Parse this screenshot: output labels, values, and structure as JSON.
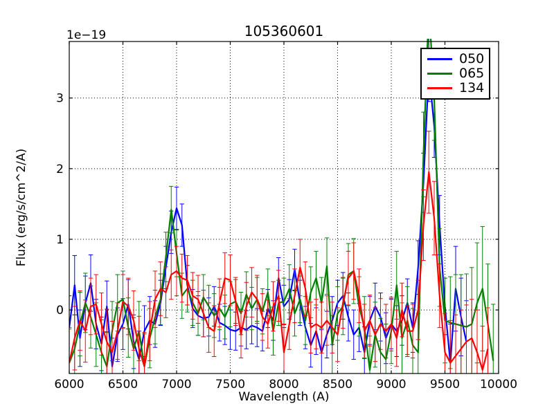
{
  "figure": {
    "title": "105360601",
    "offset_text": "1e−19",
    "xlabel": "Wavelength (A)",
    "ylabel": "Flux (erg/s/cm^2/A)",
    "background_color": "#ffffff",
    "frame_color": "#000000"
  },
  "legend": {
    "entries": [
      {
        "label": "050",
        "color": "#0000ff"
      },
      {
        "label": "065",
        "color": "#008000"
      },
      {
        "label": "134",
        "color": "#ff0000"
      }
    ]
  },
  "chart_data": {
    "type": "line",
    "title": "105360601",
    "xlabel": "Wavelength (A)",
    "ylabel": "Flux (erg/s/cm^2/A)",
    "y_unit_multiplier": "1e−19",
    "xlim": [
      6000,
      10000
    ],
    "ylim": [
      -0.9,
      3.8
    ],
    "xticks": [
      6000,
      6500,
      7000,
      7500,
      8000,
      8500,
      9000,
      9500,
      10000
    ],
    "yticks": [
      0,
      1,
      2,
      3
    ],
    "grid": true,
    "grid_style": "dotted",
    "legend_position": "upper right",
    "error_bars": true,
    "series": [
      {
        "name": "050",
        "color": "#0000ff",
        "x_start": 6000,
        "x_step": 50,
        "y": [
          -0.25,
          0.35,
          -0.4,
          0.1,
          0.38,
          -0.2,
          -0.48,
          0.05,
          -0.8,
          -0.35,
          -0.2,
          0.08,
          -0.45,
          -0.7,
          -0.3,
          -0.15,
          -0.2,
          0.1,
          0.6,
          1.1,
          1.44,
          1.2,
          0.35,
          0.02,
          -0.08,
          -0.12,
          -0.1,
          0.05,
          -0.18,
          -0.22,
          -0.28,
          -0.3,
          -0.25,
          -0.28,
          -0.22,
          -0.25,
          -0.3,
          0.02,
          -0.15,
          0.45,
          0.05,
          0.15,
          0.57,
          0.1,
          -0.25,
          -0.5,
          -0.3,
          -0.6,
          -0.35,
          -0.15,
          0.1,
          0.2,
          -0.1,
          -0.35,
          -0.25,
          -0.6,
          -0.15,
          0.05,
          -0.1,
          -0.4,
          -0.2,
          -0.3,
          -0.15,
          0.1,
          -0.25,
          0.6,
          1.8,
          3.4,
          2.6,
          1.2,
          0.05,
          -0.75,
          0.3,
          -0.1,
          -0.45
        ],
        "yerr": [
          0.45,
          0.42,
          0.4,
          0.38,
          0.4,
          0.35,
          0.38,
          0.36,
          0.4,
          0.38,
          0.36,
          0.35,
          0.38,
          0.4,
          0.36,
          0.34,
          0.33,
          0.32,
          0.3,
          0.3,
          0.3,
          0.3,
          0.28,
          0.27,
          0.28,
          0.26,
          0.27,
          0.28,
          0.26,
          0.27,
          0.28,
          0.27,
          0.26,
          0.27,
          0.26,
          0.27,
          0.28,
          0.27,
          0.28,
          0.29,
          0.3,
          0.28,
          0.29,
          0.32,
          0.3,
          0.31,
          0.33,
          0.32,
          0.33,
          0.34,
          0.32,
          0.33,
          0.34,
          0.35,
          0.34,
          0.36,
          0.34,
          0.33,
          0.34,
          0.36,
          0.35,
          0.36,
          0.35,
          0.34,
          0.35,
          0.38,
          0.42,
          0.45,
          0.44,
          0.42,
          0.4,
          0.55,
          0.6,
          0.55,
          0.58
        ]
      },
      {
        "name": "065",
        "color": "#008000",
        "x_start": 6000,
        "x_step": 50,
        "y": [
          -0.75,
          -0.55,
          -0.2,
          0.1,
          -0.1,
          -0.35,
          -0.6,
          -0.8,
          -0.3,
          0.1,
          0.15,
          -0.25,
          -0.55,
          -0.3,
          -0.8,
          -0.4,
          -0.1,
          0.15,
          0.75,
          1.42,
          0.8,
          0.2,
          0.3,
          0.1,
          -0.05,
          0.18,
          0.05,
          -0.08,
          0.02,
          -0.1,
          0.08,
          0.12,
          -0.05,
          0.22,
          0.02,
          0.15,
          -0.02,
          0.25,
          -0.3,
          0.1,
          0.12,
          0.3,
          -0.05,
          0.15,
          -0.15,
          0.25,
          0.45,
          0.1,
          0.62,
          -0.5,
          -0.05,
          0.05,
          0.5,
          0.55,
          0.05,
          -0.25,
          -0.85,
          -0.35,
          -0.6,
          -0.7,
          -0.3,
          0.35,
          -0.4,
          -0.15,
          -0.5,
          -0.6,
          2.2,
          4.3,
          3.0,
          0.6,
          -0.15,
          -0.18,
          -0.2,
          -0.22,
          -0.24,
          -0.2,
          0.1,
          0.3,
          -0.2,
          -0.72
        ],
        "yerr": [
          0.5,
          0.48,
          0.45,
          0.42,
          0.44,
          0.45,
          0.46,
          0.48,
          0.42,
          0.4,
          0.4,
          0.42,
          0.44,
          0.42,
          0.46,
          0.42,
          0.38,
          0.36,
          0.35,
          0.33,
          0.33,
          0.32,
          0.33,
          0.32,
          0.31,
          0.32,
          0.3,
          0.31,
          0.3,
          0.31,
          0.32,
          0.31,
          0.3,
          0.32,
          0.3,
          0.31,
          0.32,
          0.33,
          0.34,
          0.32,
          0.33,
          0.34,
          0.32,
          0.33,
          0.34,
          0.36,
          0.38,
          0.36,
          0.4,
          0.42,
          0.38,
          0.4,
          0.44,
          0.46,
          0.42,
          0.44,
          0.48,
          0.46,
          0.48,
          0.5,
          0.46,
          0.48,
          0.5,
          0.48,
          0.52,
          0.55,
          0.6,
          0.65,
          0.6,
          0.55,
          0.6,
          0.65,
          0.7,
          0.72,
          0.75,
          0.8,
          0.85,
          0.88,
          0.85,
          0.8
        ]
      },
      {
        "name": "134",
        "color": "#ff0000",
        "x_start": 6000,
        "x_step": 50,
        "y": [
          -0.75,
          -0.4,
          -0.15,
          -0.3,
          0.05,
          0.08,
          -0.2,
          -0.45,
          -0.6,
          -0.3,
          0.12,
          0.05,
          -0.15,
          -0.55,
          -0.8,
          -0.3,
          0.15,
          0.3,
          0.25,
          0.5,
          0.55,
          0.45,
          0.42,
          0.2,
          0.15,
          -0.05,
          -0.25,
          -0.3,
          0.1,
          0.45,
          0.42,
          0.12,
          -0.35,
          0.05,
          0.25,
          0.15,
          -0.1,
          -0.2,
          0.05,
          0.2,
          -0.6,
          -0.2,
          0.2,
          0.6,
          0.3,
          -0.25,
          -0.2,
          -0.25,
          -0.15,
          -0.25,
          -0.35,
          0.1,
          0.45,
          0.55,
          0.2,
          -0.3,
          -0.15,
          -0.35,
          -0.2,
          -0.3,
          -0.2,
          -0.4,
          0.0,
          -0.3,
          -0.3,
          0.0,
          1.2,
          1.95,
          1.3,
          0.2,
          -0.6,
          -0.75,
          -0.65,
          -0.55,
          -0.45,
          -0.4,
          -0.6,
          -0.85,
          -0.55
        ],
        "yerr": [
          0.48,
          0.45,
          0.42,
          0.44,
          0.4,
          0.42,
          0.44,
          0.46,
          0.44,
          0.4,
          0.38,
          0.4,
          0.42,
          0.46,
          0.48,
          0.42,
          0.4,
          0.38,
          0.36,
          0.35,
          0.35,
          0.34,
          0.35,
          0.33,
          0.34,
          0.33,
          0.35,
          0.36,
          0.34,
          0.36,
          0.36,
          0.34,
          0.33,
          0.34,
          0.35,
          0.34,
          0.33,
          0.34,
          0.35,
          0.36,
          0.4,
          0.36,
          0.38,
          0.4,
          0.38,
          0.36,
          0.35,
          0.36,
          0.35,
          0.36,
          0.38,
          0.36,
          0.38,
          0.4,
          0.38,
          0.38,
          0.36,
          0.38,
          0.36,
          0.38,
          0.38,
          0.4,
          0.38,
          0.36,
          0.38,
          0.42,
          0.5,
          0.58,
          0.52,
          0.45,
          0.55,
          0.6,
          0.58,
          0.55,
          0.52,
          0.55,
          0.6,
          0.62,
          0.58
        ]
      }
    ]
  }
}
